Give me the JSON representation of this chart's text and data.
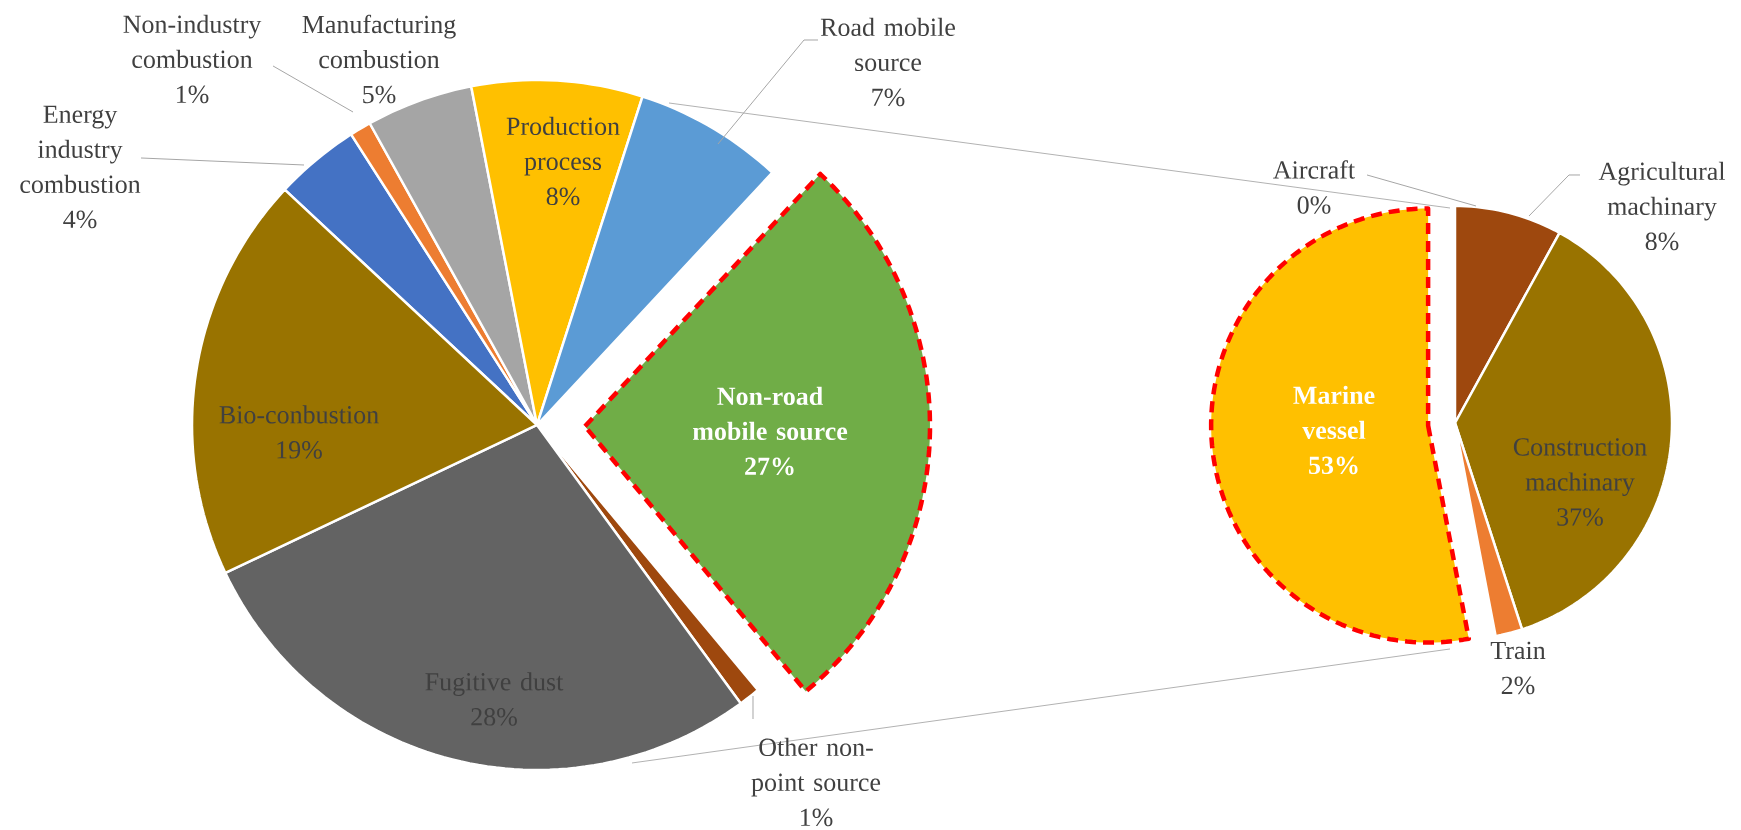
{
  "chart_data": [
    {
      "type": "pie",
      "categories": [
        "Energy industry combustion",
        "Non-industry combustion",
        "Manufacturing combustion",
        "Production process",
        "Road mobile source",
        "Non-road mobile source",
        "Other non-point source",
        "Fugitive dust",
        "Bio-conbustion"
      ],
      "values": [
        4,
        1,
        5,
        8,
        7,
        27,
        1,
        28,
        19
      ],
      "colors": [
        "#4472c4",
        "#ed7d31",
        "#a5a5a5",
        "#ffc000",
        "#5b9bd5",
        "#70ad47",
        "#9e480e",
        "#636363",
        "#997300"
      ],
      "value_labels": [
        "4%",
        "1%",
        "5%",
        "8%",
        "7%",
        "27%",
        "1%",
        "28%",
        "19%"
      ]
    },
    {
      "type": "pie",
      "categories": [
        "Aircraft",
        "Agricultural machinary",
        "Construction machinary",
        "Train",
        "Marine vessel"
      ],
      "values": [
        0,
        8,
        37,
        2,
        53
      ],
      "colors": [
        "#70ad47",
        "#9e480e",
        "#997300",
        "#ed7d31",
        "#ffc000"
      ],
      "value_labels": [
        "0%",
        "8%",
        "37%",
        "2%",
        "53%"
      ]
    }
  ]
}
